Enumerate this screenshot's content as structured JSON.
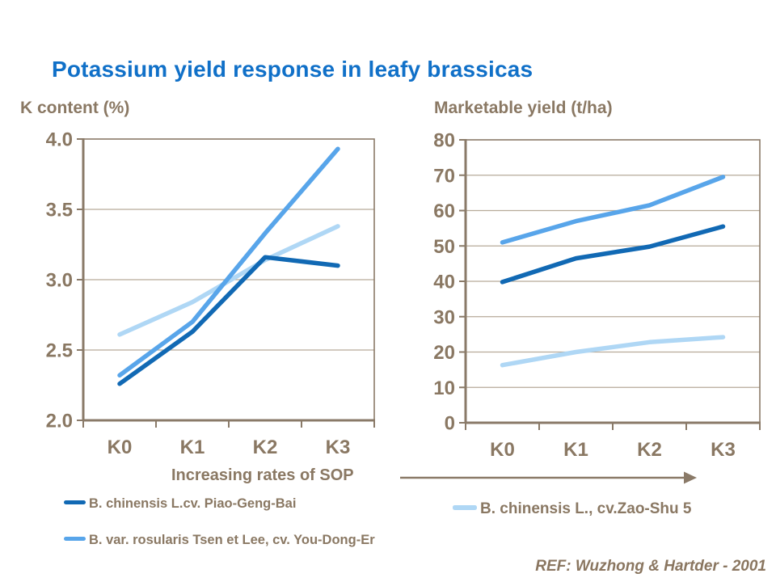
{
  "slide": {
    "title": "Potassium yield response in leafy brassicas",
    "sop_label": "Increasing rates of SOP",
    "ref": "REF: Wuzhong & Hartder - 2001"
  },
  "colors": {
    "title": "#1070C8",
    "text": "#8A7863",
    "axis": "#8A7A68",
    "grid": "#B6AA99",
    "series_dark_blue": "#1169B4",
    "series_medium_blue": "#58A5EA",
    "series_light_blue": "#AFD7F5"
  },
  "legend": {
    "left": [
      {
        "label": "B. chinensis L.cv. Piao-Geng-Bai",
        "color": "#1169B4"
      },
      {
        "label": "B. var. rosularis Tsen et Lee, cv. You-Dong-Er",
        "color": "#58A5EA"
      }
    ],
    "right": [
      {
        "label": "B. chinensis L., cv.Zao-Shu 5",
        "color": "#AFD7F5"
      }
    ]
  },
  "chart_data": [
    {
      "type": "line",
      "title": "K content (%)",
      "categories": [
        "K0",
        "K1",
        "K2",
        "K3"
      ],
      "series": [
        {
          "id": "piao-geng-bai",
          "name": "B. chinensis L.cv. Piao-Geng-Bai",
          "color": "#1169B4",
          "values": [
            2.26,
            2.63,
            3.16,
            3.1
          ]
        },
        {
          "id": "you-dong-er",
          "name": "B. var. rosularis Tsen et Lee, cv. You-Dong-Er",
          "color": "#58A5EA",
          "values": [
            2.32,
            2.7,
            3.33,
            3.93
          ]
        },
        {
          "id": "zao-shu-5",
          "name": "B. chinensis L., cv.Zao-Shu 5",
          "color": "#AFD7F5",
          "values": [
            2.61,
            2.84,
            3.14,
            3.38
          ]
        }
      ],
      "xlabel": "Increasing rates of SOP",
      "ylabel": "K content (%)",
      "ylim": [
        2.0,
        4.0
      ],
      "ytick_step": 0.5,
      "ytick_labels": [
        "2.0",
        "2.5",
        "3.0",
        "3.5",
        "4.0"
      ],
      "grid": true,
      "legend_position": "below-left"
    },
    {
      "type": "line",
      "title": "Marketable yield (t/ha)",
      "categories": [
        "K0",
        "K1",
        "K2",
        "K3"
      ],
      "series": [
        {
          "id": "piao-geng-bai",
          "name": "B. chinensis L.cv. Piao-Geng-Bai",
          "color": "#1169B4",
          "values": [
            39.8,
            46.5,
            49.8,
            55.5
          ]
        },
        {
          "id": "you-dong-er",
          "name": "B. var. rosularis Tsen et Lee, cv. You-Dong-Er",
          "color": "#58A5EA",
          "values": [
            51,
            57,
            61.5,
            69.5
          ]
        },
        {
          "id": "zao-shu-5",
          "name": "B. chinensis L., cv.Zao-Shu 5",
          "color": "#AFD7F5",
          "values": [
            16.3,
            20,
            22.8,
            24.2
          ]
        }
      ],
      "xlabel": "Increasing rates of SOP",
      "ylabel": "Marketable yield (t/ha)",
      "ylim": [
        0,
        80
      ],
      "ytick_step": 10,
      "ytick_labels": [
        "0",
        "10",
        "20",
        "30",
        "40",
        "50",
        "60",
        "70",
        "80"
      ],
      "grid": true,
      "legend_position": "below-right"
    }
  ]
}
